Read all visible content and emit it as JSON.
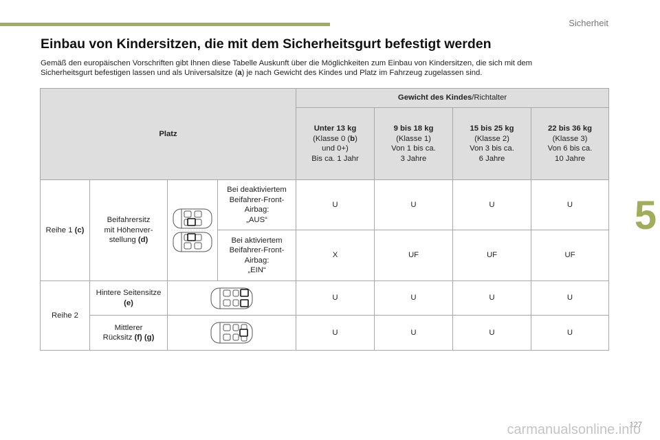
{
  "header": {
    "section": "Sicherheit",
    "chapter": "5",
    "page_number": "127"
  },
  "title": "Einbau von Kindersitzen, die mit dem Sicherheitsgurt befestigt werden",
  "intro": {
    "line1": "Gemäß den europäischen Vorschriften gibt Ihnen diese Tabelle Auskunft über die Möglichkeiten zum Einbau von Kindersitzen, die sich mit dem",
    "line2_before": "Sicherheitsgurt befestigen lassen und als Universalsitze (",
    "line2_bold": "a",
    "line2_after": ") je nach Gewicht des Kindes und Platz im Fahrzeug zugelassen sind."
  },
  "table": {
    "platz_label": "Platz",
    "weight_header_bold": "Gewicht des Kindes",
    "weight_header_rest": "/Richtalter",
    "columns": [
      {
        "weight": "Unter 13 kg",
        "klasse_pre": "(Klasse 0 (",
        "klasse_bold": "b",
        "klasse_post": ")",
        "line3": "und 0+)",
        "line4": "Bis ca. 1 Jahr"
      },
      {
        "weight": "9 bis 18 kg",
        "klasse": "(Klasse 1)",
        "line3": "Von 1 bis ca.",
        "line4": "3 Jahre"
      },
      {
        "weight": "15 bis 25 kg",
        "klasse": "(Klasse 2)",
        "line3": "Von 3 bis ca.",
        "line4": "6 Jahre"
      },
      {
        "weight": "22 bis 36 kg",
        "klasse": "(Klasse 3)",
        "line3": "Von 6 bis ca.",
        "line4": "10 Jahre"
      }
    ],
    "row1": {
      "label": "Reihe 1",
      "label_code": "(c)",
      "seat_line1": "Beifahrersitz",
      "seat_line2": "mit Höhenver-",
      "seat_line3": "stellung",
      "seat_code": "(d)",
      "cond_off": [
        "Bei deaktiviertem",
        "Beifahrer-Front-",
        "Airbag:",
        "„AUS“"
      ],
      "cond_on": [
        "Bei aktiviertem",
        "Beifahrer-Front-",
        "Airbag:",
        "„EIN“"
      ],
      "values_off": [
        "U",
        "U",
        "U",
        "U"
      ],
      "values_on": [
        "X",
        "UF",
        "UF",
        "UF"
      ]
    },
    "row2": {
      "label": "Reihe 2",
      "side_line1": "Hintere Seitensitze",
      "side_code": "(e)",
      "middle_line1": "Mittlerer",
      "middle_line2": "Rücksitz",
      "middle_code": "(f) (g)",
      "values_side": [
        "U",
        "U",
        "U",
        "U"
      ],
      "values_middle": [
        "U",
        "U",
        "U",
        "U"
      ]
    }
  },
  "watermark": "carmanualsonline.info"
}
